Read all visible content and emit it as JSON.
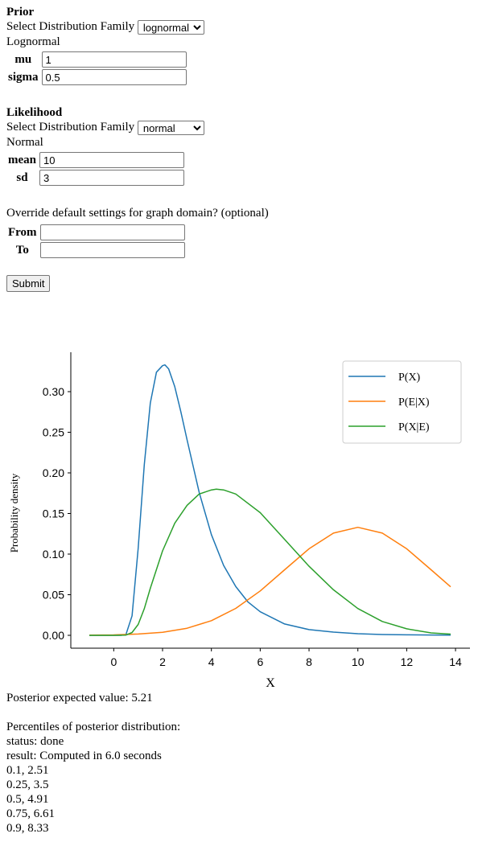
{
  "prior": {
    "heading": "Prior",
    "family_label": "Select Distribution Family",
    "family_selected": "lognormal",
    "family_name": "Lognormal",
    "params": [
      {
        "label": "mu",
        "value": "1"
      },
      {
        "label": "sigma",
        "value": "0.5"
      }
    ]
  },
  "likelihood": {
    "heading": "Likelihood",
    "family_label": "Select Distribution Family",
    "family_selected": "normal",
    "family_name": "Normal",
    "params": [
      {
        "label": "mean",
        "value": "10"
      },
      {
        "label": "sd",
        "value": "3"
      }
    ]
  },
  "domain": {
    "prompt": "Override default settings for graph domain? (optional)",
    "from_label": "From",
    "from_value": "",
    "to_label": "To",
    "to_value": ""
  },
  "submit_label": "Submit",
  "chart_data": {
    "type": "line",
    "title": "",
    "xlabel": "X",
    "ylabel": "Probability density",
    "xlim": [
      -1,
      14
    ],
    "ylim": [
      0,
      0.34
    ],
    "xticks": [
      0,
      2,
      4,
      6,
      8,
      10,
      12,
      14
    ],
    "yticks": [
      0.0,
      0.05,
      0.1,
      0.15,
      0.2,
      0.25,
      0.3
    ],
    "ytick_labels": [
      "0.00",
      "0.05",
      "0.10",
      "0.15",
      "0.20",
      "0.25",
      "0.30"
    ],
    "legend_position": "top-right",
    "series": [
      {
        "name": "P(X)",
        "color": "#1f77b4",
        "x": [
          -1,
          0,
          0.3,
          0.5,
          0.75,
          1.0,
          1.25,
          1.5,
          1.75,
          2.0,
          2.1,
          2.25,
          2.5,
          2.75,
          3.0,
          3.5,
          4.0,
          4.5,
          5.0,
          5.5,
          6.0,
          7.0,
          8.0,
          9.0,
          10.0,
          11.0,
          12.0,
          13.0,
          13.8
        ],
        "y": [
          0,
          0,
          0.0,
          0.001,
          0.024,
          0.107,
          0.21,
          0.286,
          0.324,
          0.332,
          0.333,
          0.328,
          0.306,
          0.275,
          0.241,
          0.176,
          0.124,
          0.086,
          0.06,
          0.041,
          0.029,
          0.014,
          0.007,
          0.004,
          0.002,
          0.001,
          0.0006,
          0.0004,
          0.0003
        ]
      },
      {
        "name": "P(E|X)",
        "color": "#ff7f0e",
        "x": [
          -1,
          0,
          1,
          2,
          3,
          4,
          5,
          6,
          7,
          8,
          9,
          10,
          11,
          12,
          13,
          13.8
        ],
        "y": [
          0.0003,
          0.0005,
          0.0016,
          0.0038,
          0.0087,
          0.018,
          0.0332,
          0.0547,
          0.0807,
          0.1065,
          0.1258,
          0.133,
          0.1258,
          0.1065,
          0.0807,
          0.0597
        ]
      },
      {
        "name": "P(X|E)",
        "color": "#2ca02c",
        "x": [
          -1,
          0,
          0.5,
          0.75,
          1.0,
          1.25,
          1.5,
          2.0,
          2.5,
          3.0,
          3.5,
          4.0,
          4.2,
          4.5,
          5.0,
          6.0,
          7.0,
          8.0,
          9.0,
          10.0,
          11.0,
          12.0,
          13.0,
          13.8
        ],
        "y": [
          0,
          0,
          0.0003,
          0.0035,
          0.0134,
          0.0328,
          0.0579,
          0.104,
          0.138,
          0.16,
          0.174,
          0.179,
          0.18,
          0.179,
          0.174,
          0.151,
          0.118,
          0.085,
          0.056,
          0.033,
          0.017,
          0.008,
          0.003,
          0.0015
        ]
      }
    ]
  },
  "results": {
    "expected_value_line": "Posterior expected value: 5.21",
    "percentiles_heading": "Percentiles of posterior distribution:",
    "status_line": "status: done",
    "result_line": "result: Computed in 6.0 seconds",
    "percentiles": [
      "0.1, 2.51",
      "0.25, 3.5",
      "0.5, 4.91",
      "0.75, 6.61",
      "0.9, 8.33"
    ]
  }
}
